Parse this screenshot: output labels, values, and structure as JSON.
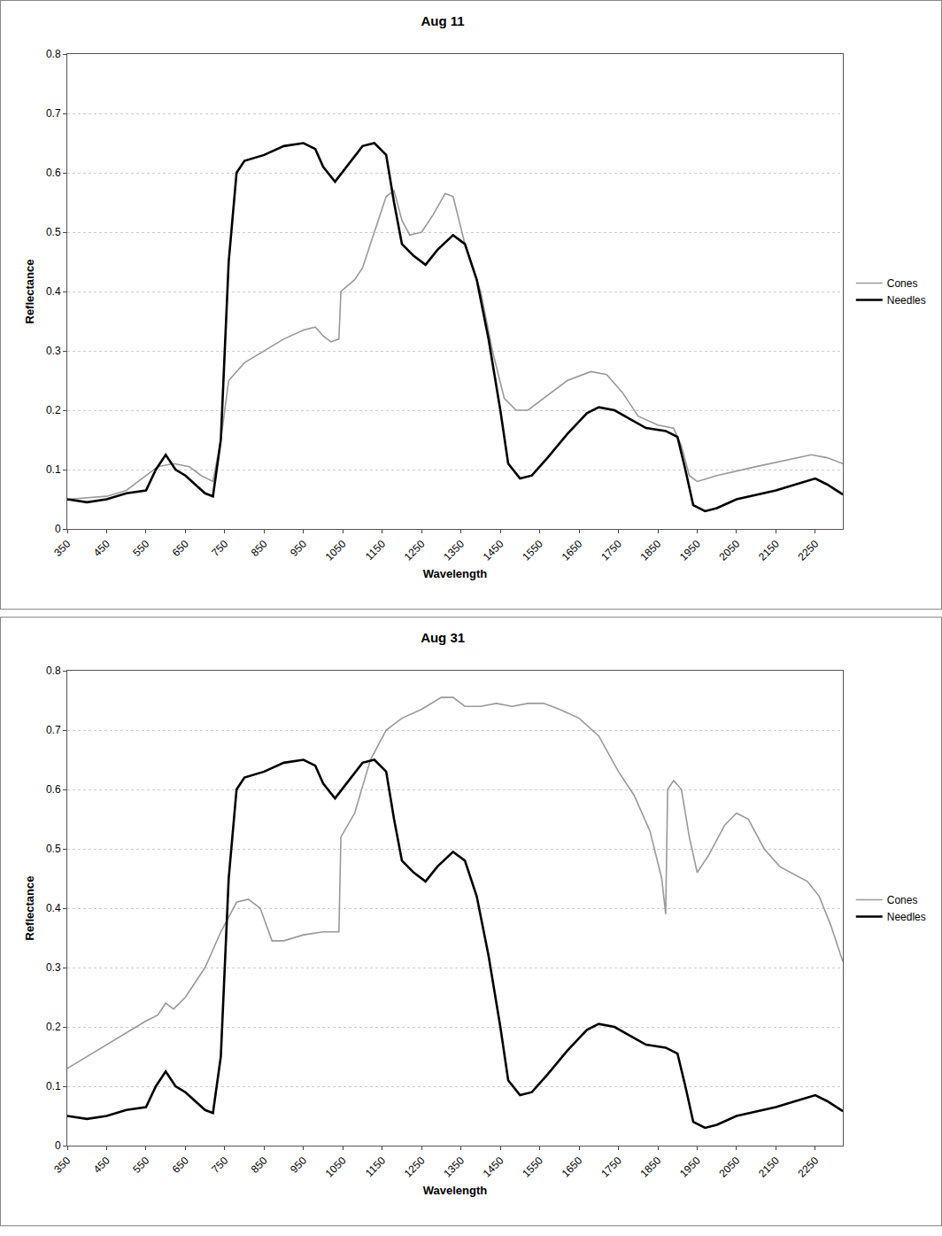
{
  "chart_data": [
    {
      "type": "line",
      "title": "Aug 11",
      "x_label": "Wavelength",
      "y_label": "Reflectance",
      "xlim": [
        350,
        2320
      ],
      "ylim": [
        0,
        0.8
      ],
      "xticks": [
        350,
        450,
        550,
        650,
        750,
        850,
        950,
        1050,
        1150,
        1250,
        1350,
        1450,
        1550,
        1650,
        1750,
        1850,
        1950,
        2050,
        2150,
        2250
      ],
      "yticks": [
        0,
        0.1,
        0.2,
        0.3,
        0.4,
        0.5,
        0.6,
        0.7,
        0.8
      ],
      "grid": true,
      "legend": "right",
      "series": [
        {
          "name": "Cones",
          "color": "#999999",
          "x": [
            350,
            450,
            500,
            550,
            580,
            620,
            660,
            690,
            720,
            740,
            760,
            800,
            850,
            900,
            950,
            980,
            1000,
            1020,
            1040,
            1045,
            1080,
            1100,
            1130,
            1160,
            1180,
            1200,
            1220,
            1250,
            1280,
            1310,
            1330,
            1360,
            1400,
            1430,
            1460,
            1490,
            1520,
            1560,
            1620,
            1680,
            1720,
            1760,
            1800,
            1850,
            1890,
            1910,
            1930,
            1950,
            2000,
            2100,
            2200,
            2240,
            2280,
            2320
          ],
          "values": [
            0.05,
            0.055,
            0.065,
            0.09,
            0.105,
            0.11,
            0.105,
            0.09,
            0.08,
            0.15,
            0.25,
            0.28,
            0.3,
            0.32,
            0.335,
            0.34,
            0.325,
            0.315,
            0.32,
            0.4,
            0.42,
            0.44,
            0.5,
            0.56,
            0.57,
            0.52,
            0.495,
            0.5,
            0.53,
            0.565,
            0.56,
            0.48,
            0.4,
            0.3,
            0.22,
            0.2,
            0.2,
            0.22,
            0.25,
            0.265,
            0.26,
            0.23,
            0.19,
            0.175,
            0.17,
            0.14,
            0.09,
            0.08,
            0.09,
            0.105,
            0.12,
            0.125,
            0.12,
            0.11
          ]
        },
        {
          "name": "Needles",
          "color": "#000000",
          "x": [
            350,
            400,
            450,
            500,
            550,
            575,
            600,
            625,
            650,
            700,
            720,
            740,
            760,
            780,
            800,
            850,
            900,
            950,
            980,
            1000,
            1030,
            1060,
            1100,
            1130,
            1160,
            1180,
            1200,
            1230,
            1260,
            1290,
            1330,
            1360,
            1390,
            1420,
            1450,
            1470,
            1500,
            1530,
            1570,
            1620,
            1670,
            1700,
            1740,
            1780,
            1820,
            1870,
            1900,
            1920,
            1940,
            1970,
            2000,
            2050,
            2100,
            2150,
            2200,
            2250,
            2280,
            2320
          ],
          "values": [
            0.05,
            0.045,
            0.05,
            0.06,
            0.065,
            0.1,
            0.125,
            0.1,
            0.09,
            0.06,
            0.055,
            0.15,
            0.45,
            0.6,
            0.62,
            0.63,
            0.645,
            0.65,
            0.64,
            0.61,
            0.585,
            0.61,
            0.645,
            0.65,
            0.63,
            0.55,
            0.48,
            0.46,
            0.445,
            0.47,
            0.495,
            0.48,
            0.42,
            0.32,
            0.2,
            0.11,
            0.085,
            0.09,
            0.12,
            0.16,
            0.195,
            0.205,
            0.2,
            0.185,
            0.17,
            0.165,
            0.155,
            0.1,
            0.04,
            0.03,
            0.035,
            0.05,
            0.058,
            0.065,
            0.075,
            0.085,
            0.075,
            0.058
          ]
        }
      ]
    },
    {
      "type": "line",
      "title": "Aug 31",
      "x_label": "Wavelength",
      "y_label": "Reflectance",
      "xlim": [
        350,
        2320
      ],
      "ylim": [
        0,
        0.8
      ],
      "xticks": [
        350,
        450,
        550,
        650,
        750,
        850,
        950,
        1050,
        1150,
        1250,
        1350,
        1450,
        1550,
        1650,
        1750,
        1850,
        1950,
        2050,
        2150,
        2250
      ],
      "yticks": [
        0,
        0.1,
        0.2,
        0.3,
        0.4,
        0.5,
        0.6,
        0.7,
        0.8
      ],
      "grid": true,
      "legend": "right",
      "series": [
        {
          "name": "Cones",
          "color": "#999999",
          "x": [
            350,
            400,
            450,
            500,
            550,
            580,
            600,
            620,
            650,
            700,
            740,
            780,
            810,
            840,
            870,
            900,
            950,
            1000,
            1040,
            1045,
            1080,
            1120,
            1160,
            1200,
            1250,
            1300,
            1330,
            1360,
            1400,
            1440,
            1480,
            1520,
            1560,
            1600,
            1650,
            1700,
            1750,
            1790,
            1830,
            1860,
            1870,
            1875,
            1890,
            1910,
            1930,
            1950,
            1980,
            2020,
            2050,
            2080,
            2120,
            2160,
            2200,
            2230,
            2260,
            2290,
            2320
          ],
          "values": [
            0.13,
            0.15,
            0.17,
            0.19,
            0.21,
            0.22,
            0.24,
            0.23,
            0.25,
            0.3,
            0.36,
            0.41,
            0.415,
            0.4,
            0.345,
            0.345,
            0.355,
            0.36,
            0.36,
            0.52,
            0.56,
            0.65,
            0.7,
            0.72,
            0.735,
            0.755,
            0.755,
            0.74,
            0.74,
            0.745,
            0.74,
            0.745,
            0.745,
            0.735,
            0.72,
            0.69,
            0.63,
            0.59,
            0.53,
            0.45,
            0.39,
            0.6,
            0.615,
            0.6,
            0.52,
            0.46,
            0.49,
            0.54,
            0.56,
            0.55,
            0.5,
            0.47,
            0.455,
            0.445,
            0.42,
            0.37,
            0.31
          ]
        },
        {
          "name": "Needles",
          "color": "#000000",
          "x": [
            350,
            400,
            450,
            500,
            550,
            575,
            600,
            625,
            650,
            700,
            720,
            740,
            760,
            780,
            800,
            850,
            900,
            950,
            980,
            1000,
            1030,
            1060,
            1100,
            1130,
            1160,
            1180,
            1200,
            1230,
            1260,
            1290,
            1330,
            1360,
            1390,
            1420,
            1450,
            1470,
            1500,
            1530,
            1570,
            1620,
            1670,
            1700,
            1740,
            1780,
            1820,
            1870,
            1900,
            1920,
            1940,
            1970,
            2000,
            2050,
            2100,
            2150,
            2200,
            2250,
            2280,
            2320
          ],
          "values": [
            0.05,
            0.045,
            0.05,
            0.06,
            0.065,
            0.1,
            0.125,
            0.1,
            0.09,
            0.06,
            0.055,
            0.15,
            0.45,
            0.6,
            0.62,
            0.63,
            0.645,
            0.65,
            0.64,
            0.61,
            0.585,
            0.61,
            0.645,
            0.65,
            0.63,
            0.55,
            0.48,
            0.46,
            0.445,
            0.47,
            0.495,
            0.48,
            0.42,
            0.32,
            0.2,
            0.11,
            0.085,
            0.09,
            0.12,
            0.16,
            0.195,
            0.205,
            0.2,
            0.185,
            0.17,
            0.165,
            0.155,
            0.1,
            0.04,
            0.03,
            0.035,
            0.05,
            0.058,
            0.065,
            0.075,
            0.085,
            0.075,
            0.058
          ]
        }
      ]
    }
  ]
}
